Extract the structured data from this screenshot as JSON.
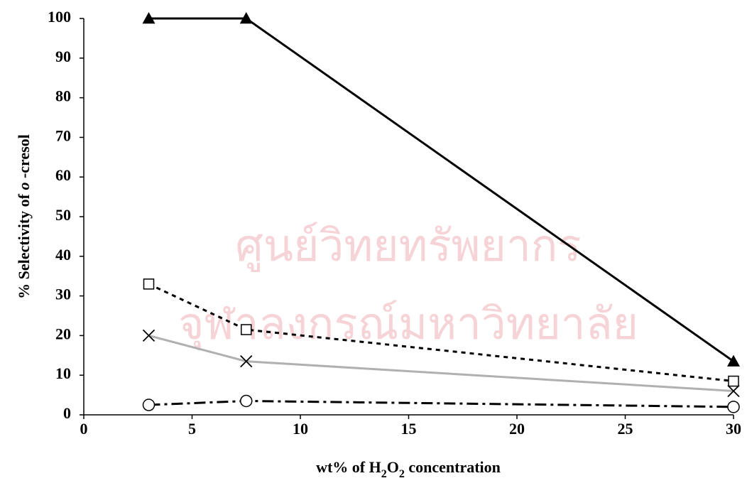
{
  "chart_data": {
    "type": "line",
    "watermark": [
      "ศูนย์วิทยทรัพยากร",
      "จุฬาลงกรณ์มหาวิทยาลัย"
    ],
    "xlabel_parts": [
      {
        "text": "wt% of H"
      },
      {
        "text": "2",
        "sub": true
      },
      {
        "text": "O"
      },
      {
        "text": "2",
        "sub": true
      },
      {
        "text": " concentration"
      }
    ],
    "ylabel_parts": [
      {
        "text": "% Selectivity of "
      },
      {
        "text": "o",
        "italic": true
      },
      {
        "text": " -cresol"
      }
    ],
    "x": [
      3,
      7.5,
      30
    ],
    "xlim": [
      0,
      30
    ],
    "xticks": [
      0,
      5,
      10,
      15,
      20,
      25,
      30
    ],
    "ylim": [
      0,
      100
    ],
    "yticks": [
      0,
      10,
      20,
      30,
      40,
      50,
      60,
      70,
      80,
      90,
      100
    ],
    "series": [
      {
        "color": "#000000",
        "line_color": "#000000",
        "dash": "none",
        "marker": "triangle",
        "values": [
          100,
          100,
          13.5
        ]
      },
      {
        "color": "#000000",
        "line_color": "#000000",
        "dash": "6 6",
        "marker": "square",
        "values": [
          33,
          21.5,
          8.5
        ]
      },
      {
        "color": "#000000",
        "line_color": "#b0b0b0",
        "dash": "none",
        "marker": "cross",
        "values": [
          20,
          13.5,
          6
        ]
      },
      {
        "color": "#000000",
        "line_color": "#000000",
        "dash": "16 6 4 6",
        "marker": "circle",
        "values": [
          2.5,
          3.5,
          2
        ]
      }
    ]
  }
}
